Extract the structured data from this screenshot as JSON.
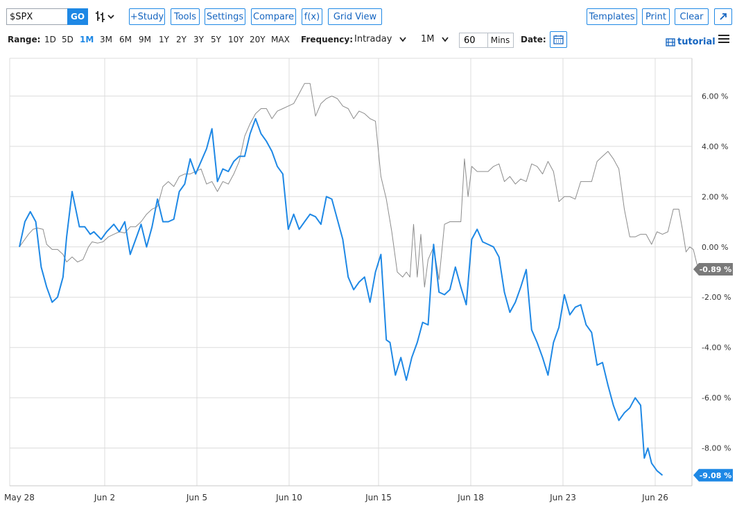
{
  "toolbar": {
    "symbol": "$SPX",
    "go_label": "GO",
    "study_label": "+Study",
    "tools_label": "Tools",
    "settings_label": "Settings",
    "compare_label": "Compare",
    "fx_label": "f(x)",
    "gridview_label": "Grid View",
    "templates_label": "Templates",
    "print_label": "Print",
    "clear_label": "Clear",
    "chart_type_icon": "ohlc-bars-icon",
    "expand_icon": "expand-arrow-icon"
  },
  "rangebar": {
    "range_label": "Range:",
    "ranges": [
      "1D",
      "5D",
      "1M",
      "3M",
      "6M",
      "9M",
      "1Y",
      "2Y",
      "3Y",
      "5Y",
      "10Y",
      "20Y",
      "MAX"
    ],
    "active_range": "1M",
    "frequency_label": "Frequency:",
    "frequency_value": "Intraday",
    "period_value": "1M",
    "interval_value": "60",
    "interval_unit": "Mins",
    "date_label": "Date:",
    "tutorial_label": "tutorial"
  },
  "colors": {
    "accent": "#1e88e5",
    "primary_series": "#1e88e5",
    "compare_series": "#8c8c8c",
    "grid": "#dcdcdc"
  },
  "chart_data": {
    "type": "line",
    "title": "",
    "xlabel": "",
    "ylabel": "",
    "y_unit": "%",
    "ylim": [
      -9.5,
      6.8
    ],
    "y_ticks": [
      6,
      4,
      2,
      0,
      -2,
      -4,
      -6,
      -8
    ],
    "y_tick_labels": [
      "6.00 %",
      "4.00 %",
      "2.00 %",
      "0.00 %",
      "-2.00 %",
      "-4.00 %",
      "-6.00 %",
      "-8.00 %"
    ],
    "x_tick_labels": [
      "May 28",
      "Jun 2",
      "Jun 5",
      "Jun 10",
      "Jun 15",
      "Jun 18",
      "Jun 23",
      "Jun 26"
    ],
    "grid": true,
    "series": [
      {
        "name": "$SPX",
        "last_label": "-0.89 %",
        "values": [
          [
            0,
            0
          ],
          [
            0.04,
            0.2
          ],
          [
            0.1,
            0.5
          ],
          [
            0.15,
            0.7
          ],
          [
            0.2,
            0.75
          ],
          [
            0.26,
            0.7
          ],
          [
            0.3,
            0.1
          ],
          [
            0.36,
            -0.1
          ],
          [
            0.42,
            -0.1
          ],
          [
            0.48,
            -0.3
          ],
          [
            0.52,
            -0.6
          ],
          [
            0.58,
            -0.4
          ],
          [
            0.64,
            -0.6
          ],
          [
            0.7,
            -0.5
          ],
          [
            0.76,
            0
          ],
          [
            0.8,
            0.2
          ],
          [
            0.86,
            0.15
          ],
          [
            0.92,
            0.2
          ],
          [
            0.98,
            0.4
          ],
          [
            1.04,
            0.5
          ],
          [
            1.1,
            0.6
          ],
          [
            1.16,
            0.55
          ],
          [
            1.22,
            0.8
          ],
          [
            1.28,
            0.8
          ],
          [
            1.34,
            1
          ],
          [
            1.4,
            1.3
          ],
          [
            1.46,
            1.5
          ],
          [
            1.52,
            1.6
          ],
          [
            1.58,
            2.4
          ],
          [
            1.64,
            2.6
          ],
          [
            1.7,
            2.4
          ],
          [
            1.76,
            2.8
          ],
          [
            1.82,
            2.9
          ],
          [
            1.88,
            2.9
          ],
          [
            1.94,
            3
          ],
          [
            2,
            3.1
          ],
          [
            2.06,
            2.5
          ],
          [
            2.12,
            2.6
          ],
          [
            2.18,
            2.2
          ],
          [
            2.24,
            2.6
          ],
          [
            2.3,
            2.5
          ],
          [
            2.36,
            2.9
          ],
          [
            2.42,
            3.4
          ],
          [
            2.48,
            4.4
          ],
          [
            2.54,
            4.9
          ],
          [
            2.6,
            5.3
          ],
          [
            2.66,
            5.5
          ],
          [
            2.72,
            5.5
          ],
          [
            2.78,
            5.1
          ],
          [
            2.84,
            5.4
          ],
          [
            2.9,
            5.5
          ],
          [
            2.96,
            5.6
          ],
          [
            3.02,
            5.7
          ],
          [
            3.08,
            6.1
          ],
          [
            3.14,
            6.5
          ],
          [
            3.2,
            6.5
          ],
          [
            3.26,
            5.2
          ],
          [
            3.32,
            5.7
          ],
          [
            3.38,
            5.9
          ],
          [
            3.44,
            6.0
          ],
          [
            3.5,
            5.9
          ],
          [
            3.56,
            5.6
          ],
          [
            3.62,
            5.5
          ],
          [
            3.68,
            5.1
          ],
          [
            3.74,
            5.4
          ],
          [
            3.8,
            5.3
          ],
          [
            3.86,
            5.1
          ],
          [
            3.92,
            5.0
          ],
          [
            3.98,
            2.8
          ],
          [
            4.04,
            1.9
          ],
          [
            4.1,
            0.6
          ],
          [
            4.16,
            -1.0
          ],
          [
            4.22,
            -1.2
          ],
          [
            4.26,
            -1.0
          ],
          [
            4.3,
            -1.2
          ],
          [
            4.34,
            0.9
          ],
          [
            4.38,
            -1.2
          ],
          [
            4.42,
            0.5
          ],
          [
            4.46,
            -1.6
          ],
          [
            4.5,
            -0.5
          ],
          [
            4.56,
            0
          ],
          [
            4.62,
            -1.3
          ],
          [
            4.68,
            0.9
          ],
          [
            4.74,
            1.0
          ],
          [
            4.8,
            1.0
          ],
          [
            4.86,
            1.0
          ],
          [
            4.9,
            3.5
          ],
          [
            4.94,
            2.0
          ],
          [
            4.98,
            3.2
          ],
          [
            5.04,
            3.0
          ],
          [
            5.1,
            3.0
          ],
          [
            5.16,
            3.0
          ],
          [
            5.22,
            3.2
          ],
          [
            5.28,
            3.3
          ],
          [
            5.34,
            2.6
          ],
          [
            5.4,
            2.8
          ],
          [
            5.46,
            2.5
          ],
          [
            5.52,
            2.7
          ],
          [
            5.58,
            2.6
          ],
          [
            5.64,
            3.3
          ],
          [
            5.7,
            3.2
          ],
          [
            5.76,
            2.9
          ],
          [
            5.82,
            3.4
          ],
          [
            5.88,
            3.0
          ],
          [
            5.94,
            1.8
          ],
          [
            6.0,
            2.0
          ],
          [
            6.06,
            2.0
          ],
          [
            6.12,
            1.9
          ],
          [
            6.18,
            2.6
          ],
          [
            6.24,
            2.6
          ],
          [
            6.3,
            2.6
          ],
          [
            6.36,
            3.4
          ],
          [
            6.42,
            3.6
          ],
          [
            6.48,
            3.8
          ],
          [
            6.54,
            3.5
          ],
          [
            6.6,
            3.1
          ],
          [
            6.66,
            1.5
          ],
          [
            6.72,
            0.4
          ],
          [
            6.78,
            0.4
          ],
          [
            6.84,
            0.5
          ],
          [
            6.9,
            0.5
          ],
          [
            6.96,
            0.1
          ],
          [
            7.02,
            0.6
          ],
          [
            7.08,
            0.5
          ],
          [
            7.14,
            0.6
          ],
          [
            7.2,
            1.5
          ],
          [
            7.26,
            1.5
          ],
          [
            7.3,
            0.7
          ],
          [
            7.34,
            -0.2
          ],
          [
            7.38,
            0
          ],
          [
            7.42,
            -0.1
          ],
          [
            7.46,
            -0.7
          ],
          [
            7.5,
            -0.88
          ],
          [
            7.56,
            -0.89
          ]
        ]
      },
      {
        "name": "$SPX (primary)",
        "last_label": "-9.08 %",
        "values": [
          [
            0,
            0
          ],
          [
            0.06,
            1.0
          ],
          [
            0.12,
            1.4
          ],
          [
            0.18,
            1.0
          ],
          [
            0.24,
            -0.8
          ],
          [
            0.3,
            -1.6
          ],
          [
            0.36,
            -2.2
          ],
          [
            0.42,
            -2.0
          ],
          [
            0.48,
            -1.2
          ],
          [
            0.52,
            0.4
          ],
          [
            0.58,
            2.2
          ],
          [
            0.66,
            0.8
          ],
          [
            0.72,
            0.8
          ],
          [
            0.78,
            0.5
          ],
          [
            0.82,
            0.6
          ],
          [
            0.9,
            0.3
          ],
          [
            0.96,
            0.6
          ],
          [
            1.04,
            0.9
          ],
          [
            1.1,
            0.6
          ],
          [
            1.16,
            1.0
          ],
          [
            1.22,
            -0.3
          ],
          [
            1.28,
            0.3
          ],
          [
            1.34,
            0.9
          ],
          [
            1.4,
            0.0
          ],
          [
            1.46,
            0.8
          ],
          [
            1.52,
            1.9
          ],
          [
            1.58,
            1.0
          ],
          [
            1.64,
            1.0
          ],
          [
            1.7,
            1.1
          ],
          [
            1.76,
            2.2
          ],
          [
            1.82,
            2.5
          ],
          [
            1.88,
            3.5
          ],
          [
            1.94,
            2.9
          ],
          [
            2.0,
            3.4
          ],
          [
            2.06,
            3.9
          ],
          [
            2.12,
            4.7
          ],
          [
            2.18,
            2.6
          ],
          [
            2.24,
            3.1
          ],
          [
            2.3,
            3.0
          ],
          [
            2.36,
            3.4
          ],
          [
            2.42,
            3.6
          ],
          [
            2.48,
            3.6
          ],
          [
            2.54,
            4.5
          ],
          [
            2.6,
            5.1
          ],
          [
            2.66,
            4.5
          ],
          [
            2.72,
            4.2
          ],
          [
            2.78,
            3.8
          ],
          [
            2.84,
            3.2
          ],
          [
            2.9,
            2.9
          ],
          [
            2.96,
            0.7
          ],
          [
            3.02,
            1.3
          ],
          [
            3.08,
            0.7
          ],
          [
            3.14,
            1.0
          ],
          [
            3.2,
            1.3
          ],
          [
            3.26,
            1.2
          ],
          [
            3.32,
            0.9
          ],
          [
            3.38,
            2.0
          ],
          [
            3.44,
            1.9
          ],
          [
            3.5,
            1.1
          ],
          [
            3.56,
            0.3
          ],
          [
            3.62,
            -1.2
          ],
          [
            3.68,
            -1.7
          ],
          [
            3.74,
            -1.4
          ],
          [
            3.8,
            -1.2
          ],
          [
            3.86,
            -2.2
          ],
          [
            3.92,
            -1.0
          ],
          [
            3.98,
            -0.3
          ],
          [
            4.04,
            -3.7
          ],
          [
            4.08,
            -3.8
          ],
          [
            4.14,
            -5.1
          ],
          [
            4.2,
            -4.4
          ],
          [
            4.26,
            -5.3
          ],
          [
            4.32,
            -4.4
          ],
          [
            4.38,
            -3.8
          ],
          [
            4.44,
            -3.0
          ],
          [
            4.5,
            -3.1
          ],
          [
            4.56,
            0.1
          ],
          [
            4.62,
            -1.8
          ],
          [
            4.68,
            -1.9
          ],
          [
            4.74,
            -1.7
          ],
          [
            4.8,
            -0.8
          ],
          [
            4.86,
            -1.6
          ],
          [
            4.92,
            -2.3
          ],
          [
            4.98,
            0.3
          ],
          [
            5.04,
            0.7
          ],
          [
            5.1,
            0.2
          ],
          [
            5.16,
            0.1
          ],
          [
            5.22,
            0.0
          ],
          [
            5.28,
            -0.4
          ],
          [
            5.34,
            -1.8
          ],
          [
            5.4,
            -2.6
          ],
          [
            5.46,
            -2.2
          ],
          [
            5.52,
            -1.6
          ],
          [
            5.58,
            -0.9
          ],
          [
            5.64,
            -3.3
          ],
          [
            5.7,
            -3.8
          ],
          [
            5.76,
            -4.4
          ],
          [
            5.82,
            -5.1
          ],
          [
            5.88,
            -3.8
          ],
          [
            5.94,
            -3.2
          ],
          [
            6.0,
            -1.9
          ],
          [
            6.06,
            -2.7
          ],
          [
            6.12,
            -2.4
          ],
          [
            6.18,
            -2.3
          ],
          [
            6.24,
            -3.1
          ],
          [
            6.3,
            -3.4
          ],
          [
            6.36,
            -4.7
          ],
          [
            6.42,
            -4.6
          ],
          [
            6.48,
            -5.5
          ],
          [
            6.54,
            -6.3
          ],
          [
            6.6,
            -6.9
          ],
          [
            6.66,
            -6.6
          ],
          [
            6.72,
            -6.4
          ],
          [
            6.78,
            -6.0
          ],
          [
            6.84,
            -6.3
          ],
          [
            6.88,
            -8.4
          ],
          [
            6.92,
            -8.0
          ],
          [
            6.96,
            -8.6
          ],
          [
            7.02,
            -8.9
          ],
          [
            7.08,
            -9.08
          ]
        ]
      }
    ]
  }
}
